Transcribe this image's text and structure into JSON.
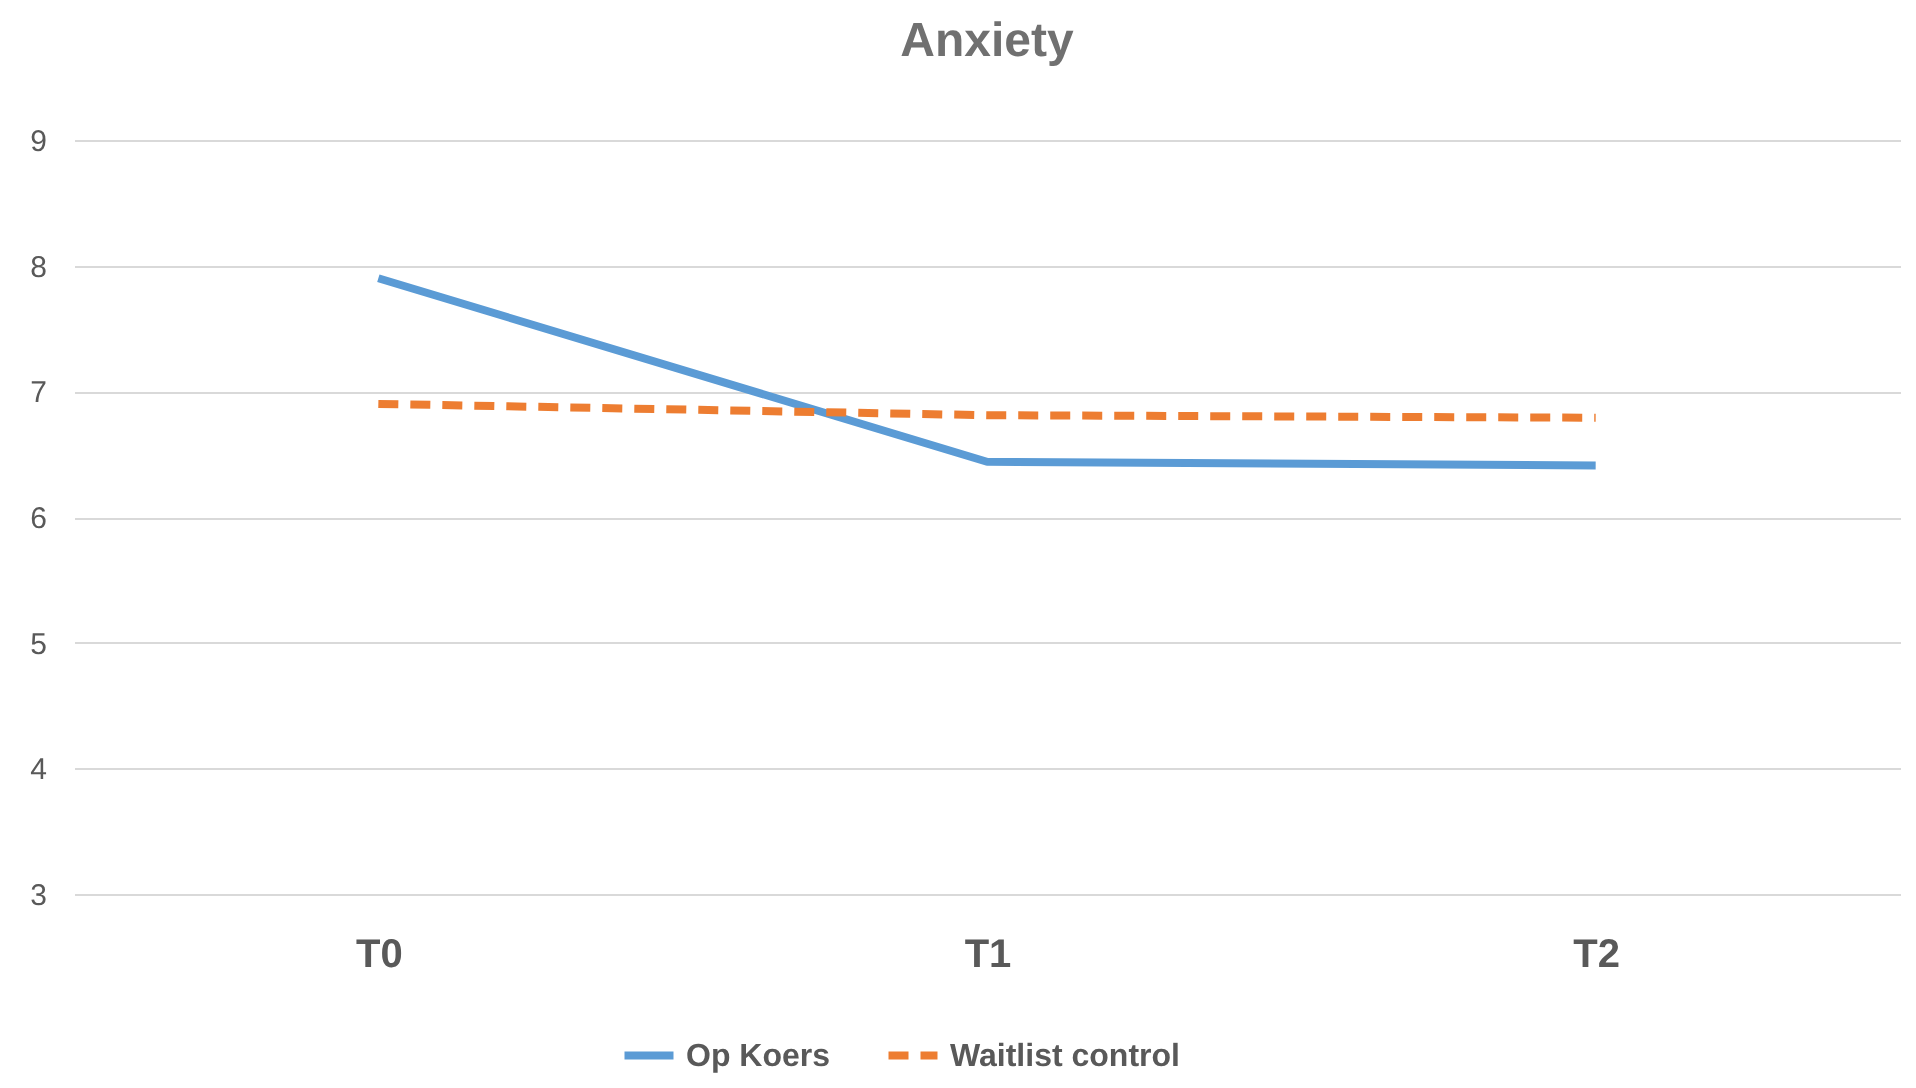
{
  "chart_data": {
    "type": "line",
    "title": "Anxiety",
    "categories": [
      "T0",
      "T1",
      "T2"
    ],
    "series": [
      {
        "name": "Op Koers",
        "color": "#5b9bd5",
        "line_style": "solid",
        "values": [
          7.9,
          6.44,
          6.41
        ]
      },
      {
        "name": "Waitlist control",
        "color": "#ed7d31",
        "line_style": "dashed",
        "values": [
          6.9,
          6.81,
          6.79
        ]
      }
    ],
    "ylim": [
      3,
      9
    ],
    "yticks": [
      3,
      4,
      5,
      6,
      7,
      8,
      9
    ],
    "grid": "y",
    "legend": "bottom",
    "marker": "none"
  }
}
